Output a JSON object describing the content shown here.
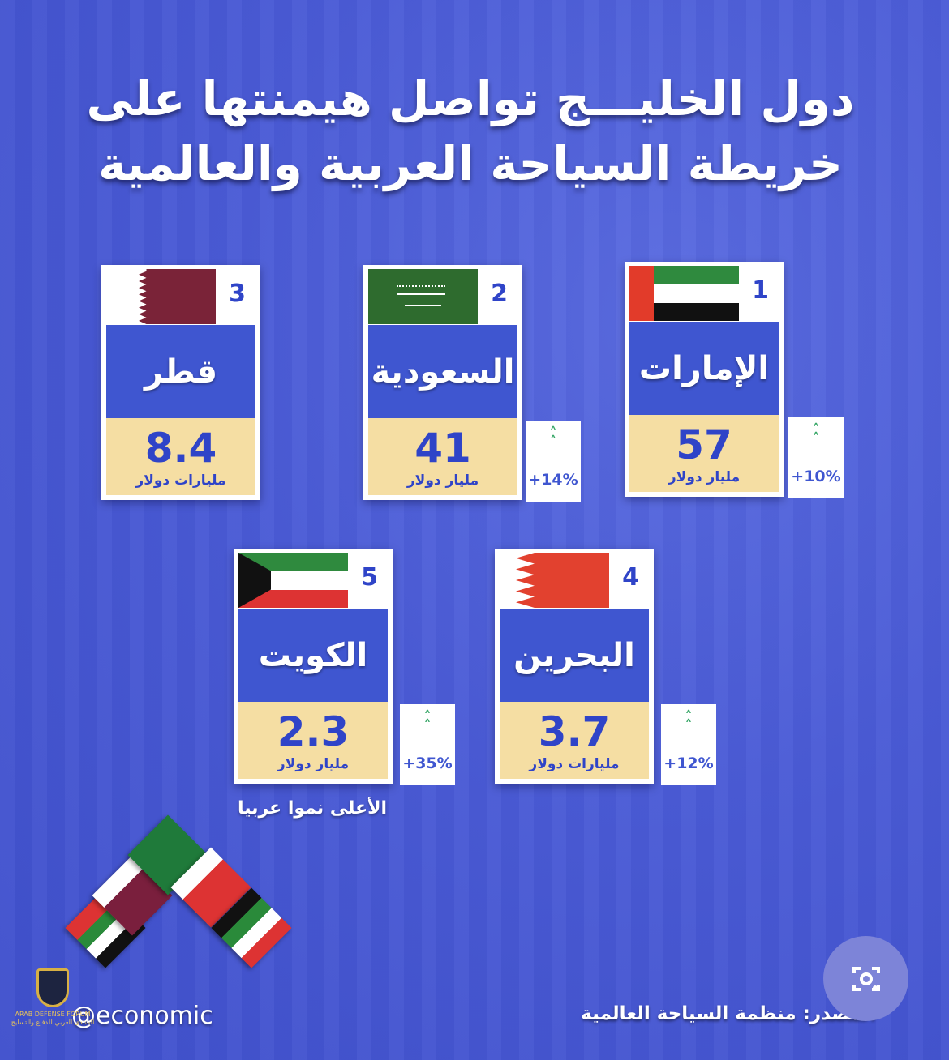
{
  "title": {
    "line1": "دول الخليـــج تواصل هيمنتها على",
    "line2": "خريطة السياحة العربية والعالمية"
  },
  "cards": [
    {
      "rank": "1",
      "country": "الإمارات",
      "flag": "uae-flag",
      "value": "57",
      "unit": "مليار دولار",
      "growth": "+10%"
    },
    {
      "rank": "2",
      "country": "السعودية",
      "flag": "saudi-flag",
      "value": "41",
      "unit": "مليار دولار",
      "growth": "+14%"
    },
    {
      "rank": "3",
      "country": "قطر",
      "flag": "qatar-flag",
      "value": "8.4",
      "unit": "مليارات دولار",
      "growth": null
    },
    {
      "rank": "4",
      "country": "البحرين",
      "flag": "bahrain-flag",
      "value": "3.7",
      "unit": "مليارات دولار",
      "growth": "+12%"
    },
    {
      "rank": "5",
      "country": "الكويت",
      "flag": "kuwait-flag",
      "value": "2.3",
      "unit": "مليار دولار",
      "growth": "+35%"
    }
  ],
  "note": "الأعلى نموا عربيا",
  "handle": "@economic",
  "source": "المصدر: منظمة السياحة العالمية",
  "watermark": {
    "en": "ARAB DEFENSE FORUM",
    "ar": "المنتدى العربي للدفاع والتسليح"
  },
  "colors": {
    "background": "#4a5bd6",
    "name_panel": "#3f56d0",
    "value_panel": "#f5dea3",
    "accent_text": "#2f44c8",
    "growth_arrow": "#3aa86a"
  }
}
